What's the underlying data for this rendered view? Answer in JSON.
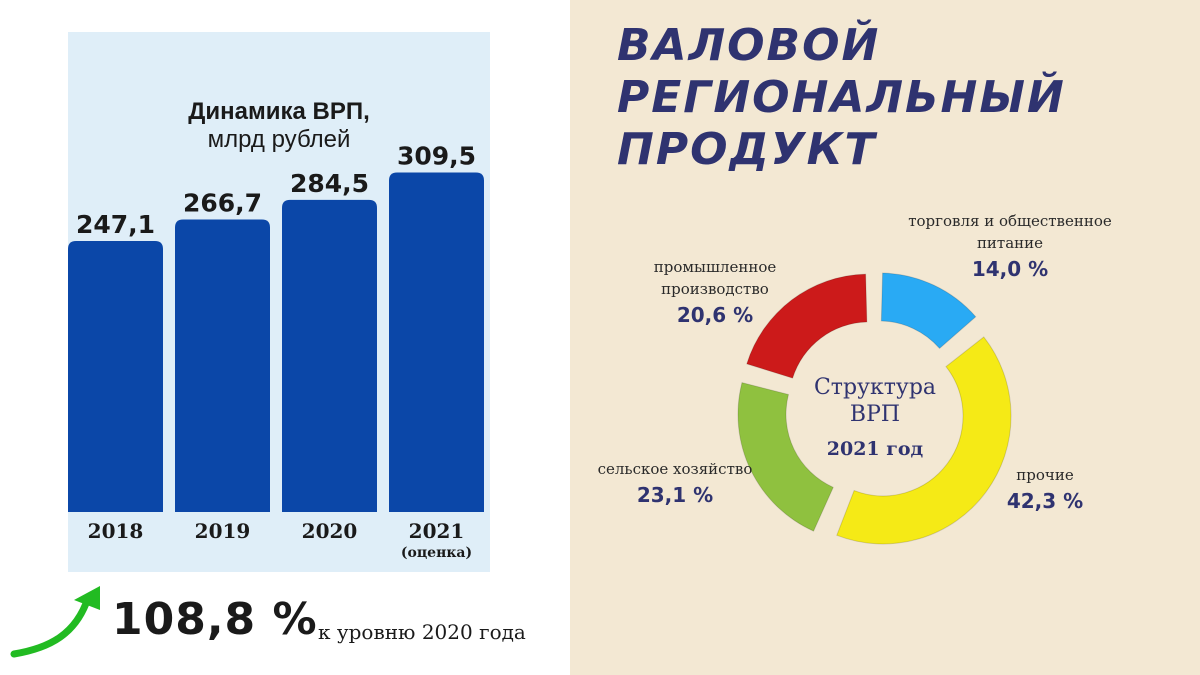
{
  "header": {
    "title_lines": [
      "ВАЛОВОЙ",
      "РЕГИОНАЛЬНЫЙ",
      "ПРОДУКТ"
    ]
  },
  "colors": {
    "bar": "#0b47a8",
    "title": "#2f3370",
    "panel_left": "#dfeef8",
    "panel_right": "#f3e8d3",
    "arrow": "#22bb22"
  },
  "growth": {
    "value": "108,8 %",
    "note": "к уровню 2020 года",
    "icon": "up-arrow-icon"
  },
  "chart_data": [
    {
      "type": "bar",
      "title": "Динамика ВРП,",
      "subtitle": "млрд рублей",
      "categories": [
        "2018",
        "2019",
        "2020",
        "2021"
      ],
      "category_notes": [
        "",
        "",
        "",
        "(оценка)"
      ],
      "values": [
        247.1,
        266.7,
        284.5,
        309.5
      ],
      "value_labels": [
        "247,1",
        "266,7",
        "284,5",
        "309,5"
      ],
      "ylim": [
        0,
        330
      ]
    },
    {
      "type": "pie",
      "center_title": "Структура ВРП",
      "center_year": "2021 год",
      "segments": [
        {
          "name": "торговля и общественное питание",
          "value": 14.0,
          "label": "14,0 %",
          "color": "#29aaf4"
        },
        {
          "name": "прочие",
          "value": 42.3,
          "label": "42,3 %",
          "color": "#f5ea16"
        },
        {
          "name": "сельское хозяйство",
          "value": 23.1,
          "label": "23,1 %",
          "color": "#8fc13f"
        },
        {
          "name": "промышленное производство",
          "value": 20.6,
          "label": "20,6 %",
          "color": "#cc1a1a"
        }
      ]
    }
  ]
}
